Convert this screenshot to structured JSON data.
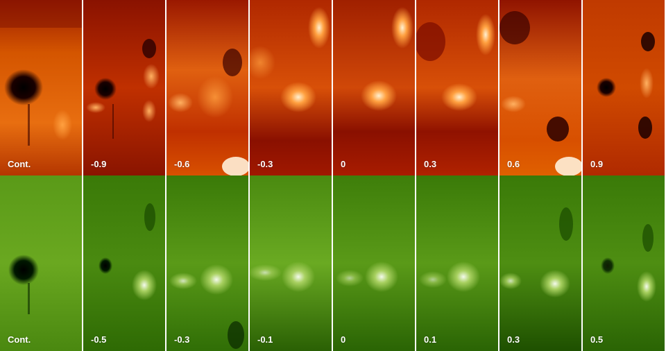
{
  "figure": {
    "top_row": {
      "colormap": "hot",
      "colors": {
        "dark": "#2a0000",
        "mid": "#b81e00",
        "light": "#ff8a20",
        "bright": "#fff4dc"
      },
      "panels": [
        {
          "label": "Cont."
        },
        {
          "label": "-0.9"
        },
        {
          "label": "-0.6"
        },
        {
          "label": "-0.3"
        },
        {
          "label": "0"
        },
        {
          "label": "0.3"
        },
        {
          "label": "0.6"
        },
        {
          "label": "0.9"
        }
      ]
    },
    "bottom_row": {
      "colormap": "green",
      "colors": {
        "dark": "#002a00",
        "mid": "#2e7000",
        "light": "#86bb2c",
        "bright": "#f6fbf0"
      },
      "panels": [
        {
          "label": "Cont."
        },
        {
          "label": "-0.5"
        },
        {
          "label": "-0.3"
        },
        {
          "label": "-0.1"
        },
        {
          "label": "0"
        },
        {
          "label": "0.1"
        },
        {
          "label": "0.3"
        },
        {
          "label": "0.5"
        }
      ]
    }
  }
}
